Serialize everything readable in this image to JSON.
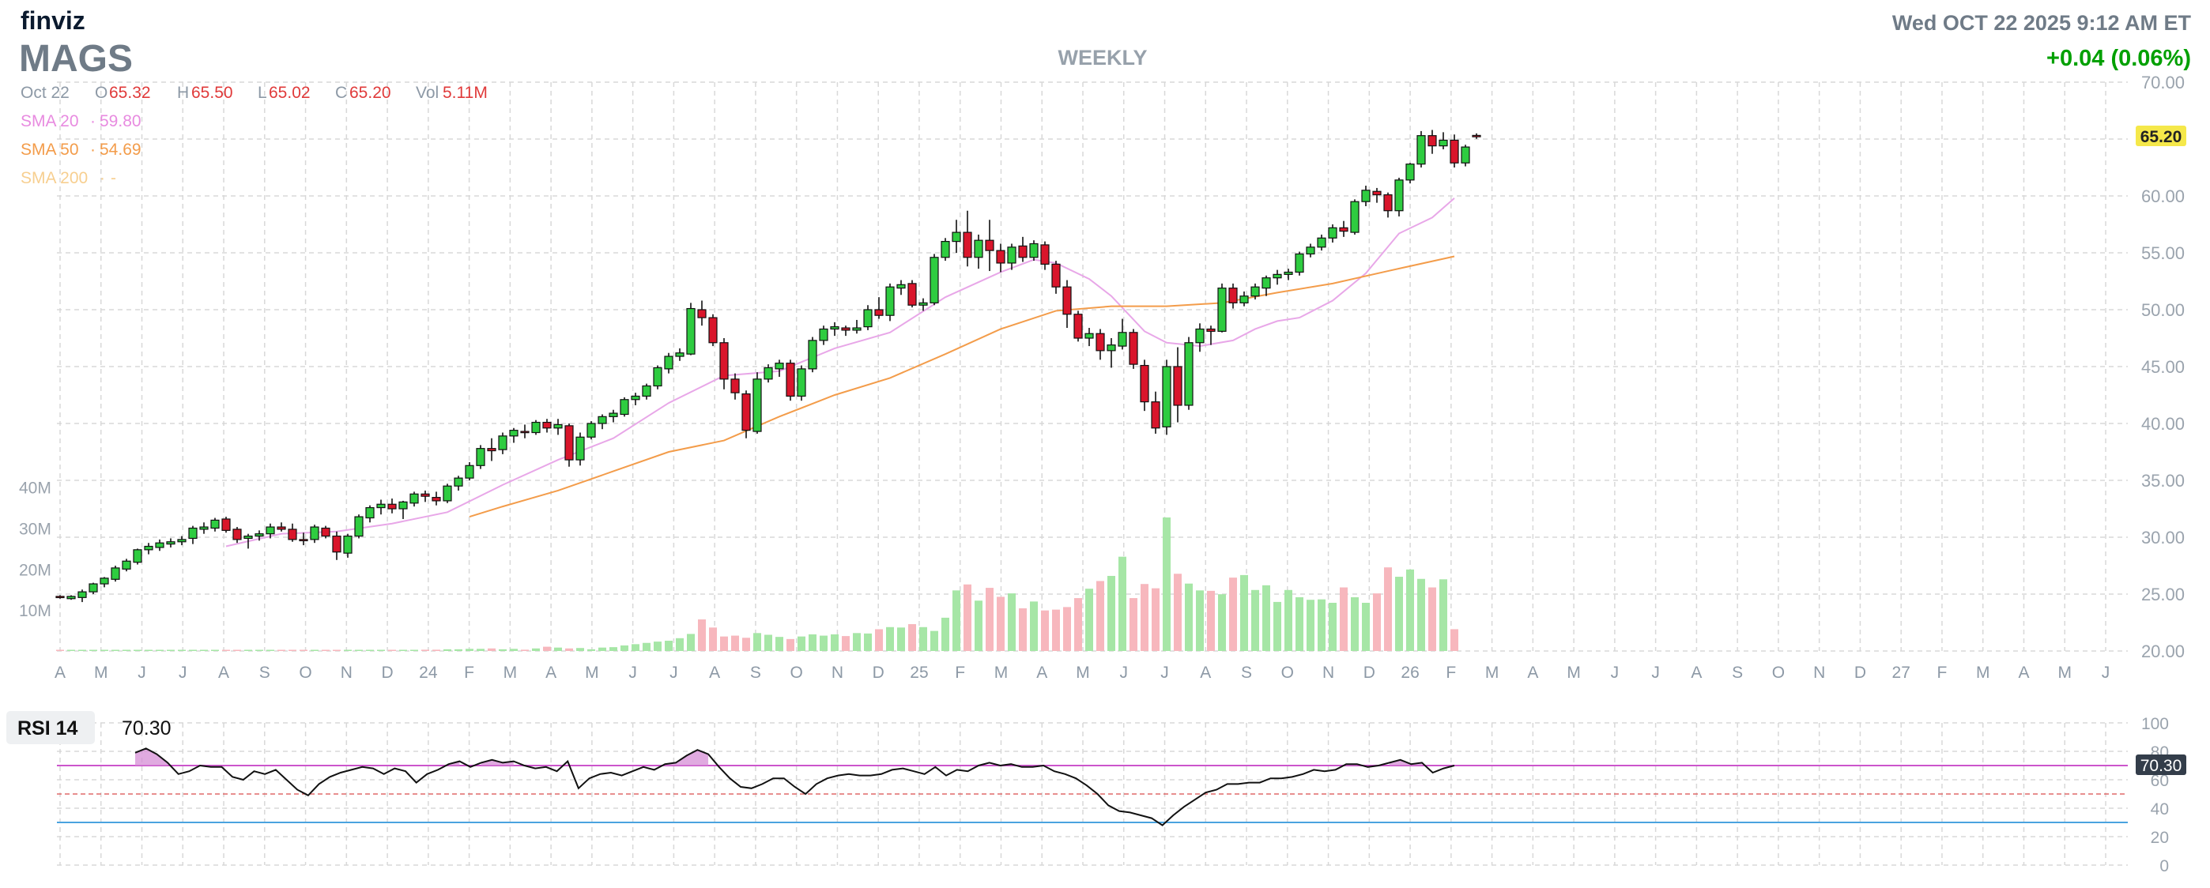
{
  "header": {
    "logo": "finviz",
    "ticker": "MAGS",
    "timeframe": "WEEKLY",
    "datetime": "Wed OCT 22 2025 9:12 AM ET",
    "change": "+0.04 (0.06%)"
  },
  "ohlc": {
    "date": "Oct 22",
    "o_label": "O",
    "open": "65.32",
    "h_label": "H",
    "high": "65.50",
    "l_label": "L",
    "low": "65.02",
    "c_label": "C",
    "close": "65.20",
    "vol_label": "Vol",
    "volume": "5.11M"
  },
  "sma": [
    {
      "label": "SMA 20",
      "value": "59.80",
      "color": "#e88be0"
    },
    {
      "label": "SMA 50",
      "value": "54.69",
      "color": "#f39c4a"
    },
    {
      "label": "SMA 200",
      "value": "-",
      "color": "#f7cf90"
    }
  ],
  "colors": {
    "up": "#2ecc40",
    "down": "#d9152b",
    "up_vol": "#a6e6a6",
    "down_vol": "#f7b7bd",
    "sma20": "#e3a2e3",
    "sma50": "#f39c4a",
    "grid": "#d8d8d8",
    "price_tag": "#f5e84a",
    "rsi_tag": "#333d4a",
    "rsi_line": "#111111",
    "rsi_70": "#cc55cc",
    "rsi_50": "#e06a6a",
    "rsi_30": "#4aa3df",
    "change": "#00a000"
  },
  "price_tag": "65.20",
  "volume_axis": [
    "40M",
    "30M",
    "20M",
    "10M"
  ],
  "rsi": {
    "label": "RSI 14",
    "value": "70.30",
    "ticks": [
      "100",
      "80",
      "60",
      "40",
      "20",
      "0"
    ],
    "values": [
      79,
      82,
      78,
      72,
      64,
      66,
      70,
      69,
      69,
      62,
      60,
      66,
      64,
      67,
      60,
      53,
      49,
      57,
      62,
      65,
      67,
      69,
      68,
      64,
      68,
      66,
      58,
      64,
      67,
      71,
      73,
      69,
      72,
      74,
      72,
      73,
      70,
      68,
      69,
      66,
      73,
      54,
      61,
      64,
      65,
      63,
      66,
      69,
      67,
      71,
      72,
      77,
      81,
      78,
      69,
      61,
      55,
      54,
      57,
      61,
      61,
      55,
      50,
      57,
      61,
      63,
      64,
      63,
      63,
      64,
      67,
      68,
      66,
      64,
      69,
      63,
      67,
      66,
      70,
      72,
      70,
      71,
      69,
      69,
      70,
      66,
      64,
      61,
      56,
      50,
      42,
      38,
      37,
      35,
      33,
      28,
      35,
      41,
      46,
      51,
      53,
      57,
      57,
      58,
      58,
      61,
      61,
      62,
      64,
      67,
      66,
      67,
      71,
      71,
      69,
      70,
      72,
      74,
      71,
      72,
      65,
      68,
      70
    ],
    "overbought": 70,
    "neutral": 50,
    "oversold": 30
  },
  "chart_data": {
    "type": "candlestick",
    "symbol": "MAGS",
    "interval": "weekly",
    "ylim": [
      20,
      70
    ],
    "y_ticks": [
      "70.00",
      "65.00",
      "60.00",
      "55.00",
      "50.00",
      "45.00",
      "40.00",
      "35.00",
      "30.00",
      "25.00",
      "20.00"
    ],
    "x_ticks": [
      "A",
      "M",
      "J",
      "J",
      "A",
      "S",
      "O",
      "N",
      "D",
      "24",
      "F",
      "M",
      "A",
      "M",
      "J",
      "J",
      "A",
      "S",
      "O",
      "N",
      "D",
      "25",
      "F",
      "M",
      "A",
      "M",
      "J",
      "J",
      "A",
      "S",
      "O",
      "N",
      "D",
      "26",
      "F",
      "M",
      "A",
      "M",
      "J",
      "J",
      "A",
      "S",
      "O",
      "N",
      "D",
      "27",
      "F",
      "M",
      "A",
      "M",
      "J"
    ],
    "last_candle_index": 126,
    "total_slots": 191,
    "ohlc": [
      [
        24.8,
        24.9,
        24.6,
        24.7
      ],
      [
        24.6,
        24.9,
        24.5,
        24.8
      ],
      [
        24.7,
        25.4,
        24.3,
        25.2
      ],
      [
        25.2,
        26.0,
        25.0,
        25.9
      ],
      [
        25.9,
        26.5,
        25.6,
        26.4
      ],
      [
        26.3,
        27.5,
        26.1,
        27.3
      ],
      [
        27.2,
        28.1,
        27.0,
        27.9
      ],
      [
        27.8,
        29.0,
        27.6,
        28.9
      ],
      [
        28.9,
        29.5,
        28.5,
        29.2
      ],
      [
        29.1,
        29.8,
        28.8,
        29.5
      ],
      [
        29.4,
        29.9,
        29.1,
        29.6
      ],
      [
        29.6,
        30.1,
        29.3,
        29.8
      ],
      [
        29.9,
        31.0,
        29.4,
        30.8
      ],
      [
        30.7,
        31.3,
        30.3,
        30.9
      ],
      [
        30.8,
        31.7,
        30.5,
        31.5
      ],
      [
        31.6,
        31.8,
        30.4,
        30.6
      ],
      [
        30.7,
        30.9,
        29.5,
        29.8
      ],
      [
        29.9,
        30.3,
        29.0,
        30.1
      ],
      [
        30.1,
        30.6,
        29.7,
        30.3
      ],
      [
        30.3,
        31.2,
        29.9,
        30.9
      ],
      [
        30.9,
        31.3,
        30.5,
        30.7
      ],
      [
        30.7,
        31.2,
        29.6,
        29.8
      ],
      [
        29.8,
        30.4,
        29.3,
        29.7
      ],
      [
        29.8,
        31.1,
        29.5,
        30.9
      ],
      [
        30.8,
        31.0,
        29.9,
        30.1
      ],
      [
        30.1,
        30.5,
        28.0,
        28.7
      ],
      [
        28.6,
        30.3,
        28.2,
        30.1
      ],
      [
        30.1,
        32.0,
        29.9,
        31.8
      ],
      [
        31.7,
        32.8,
        31.3,
        32.6
      ],
      [
        32.6,
        33.3,
        32.0,
        32.9
      ],
      [
        32.9,
        33.4,
        32.1,
        32.5
      ],
      [
        32.5,
        33.2,
        31.6,
        33.1
      ],
      [
        33.0,
        34.0,
        32.7,
        33.8
      ],
      [
        33.8,
        34.1,
        33.1,
        33.6
      ],
      [
        33.5,
        34.0,
        32.8,
        33.2
      ],
      [
        33.2,
        34.7,
        33.0,
        34.5
      ],
      [
        34.5,
        35.4,
        34.1,
        35.2
      ],
      [
        35.2,
        36.6,
        35.0,
        36.3
      ],
      [
        36.3,
        38.1,
        36.0,
        37.8
      ],
      [
        37.8,
        38.7,
        36.7,
        37.6
      ],
      [
        37.7,
        39.2,
        37.3,
        38.9
      ],
      [
        38.9,
        39.6,
        38.3,
        39.4
      ],
      [
        39.3,
        39.9,
        38.7,
        39.2
      ],
      [
        39.2,
        40.3,
        39.0,
        40.1
      ],
      [
        40.1,
        40.4,
        39.2,
        39.6
      ],
      [
        39.6,
        40.4,
        39.0,
        39.9
      ],
      [
        39.8,
        40.0,
        36.2,
        36.8
      ],
      [
        36.8,
        39.2,
        36.3,
        38.8
      ],
      [
        38.8,
        40.2,
        38.6,
        40.0
      ],
      [
        40.0,
        40.8,
        39.5,
        40.6
      ],
      [
        40.6,
        41.2,
        40.1,
        40.9
      ],
      [
        40.8,
        42.3,
        40.6,
        42.1
      ],
      [
        42.1,
        42.7,
        41.6,
        42.4
      ],
      [
        42.4,
        43.5,
        42.1,
        43.3
      ],
      [
        43.3,
        45.1,
        43.0,
        44.9
      ],
      [
        44.8,
        46.2,
        44.4,
        45.9
      ],
      [
        45.9,
        46.6,
        45.5,
        46.2
      ],
      [
        46.1,
        50.6,
        46.0,
        50.1
      ],
      [
        50.0,
        50.8,
        48.6,
        49.3
      ],
      [
        49.3,
        49.6,
        46.8,
        47.1
      ],
      [
        47.1,
        47.5,
        43.0,
        43.9
      ],
      [
        43.9,
        44.4,
        42.1,
        42.7
      ],
      [
        42.6,
        42.9,
        38.7,
        39.4
      ],
      [
        39.3,
        44.5,
        39.1,
        43.9
      ],
      [
        43.9,
        45.2,
        43.6,
        44.9
      ],
      [
        44.8,
        45.6,
        44.1,
        45.3
      ],
      [
        45.3,
        45.6,
        42.0,
        42.4
      ],
      [
        42.4,
        45.1,
        42.0,
        44.8
      ],
      [
        44.8,
        47.6,
        44.5,
        47.3
      ],
      [
        47.3,
        48.6,
        46.9,
        48.3
      ],
      [
        48.3,
        48.9,
        47.7,
        48.5
      ],
      [
        48.4,
        48.6,
        47.7,
        48.2
      ],
      [
        48.2,
        49.1,
        47.9,
        48.4
      ],
      [
        48.5,
        50.4,
        48.2,
        50.0
      ],
      [
        50.0,
        51.1,
        49.2,
        49.5
      ],
      [
        49.5,
        52.3,
        49.0,
        52.0
      ],
      [
        51.9,
        52.6,
        51.3,
        52.2
      ],
      [
        52.3,
        52.6,
        50.2,
        50.4
      ],
      [
        50.4,
        51.0,
        49.9,
        50.6
      ],
      [
        50.6,
        54.9,
        50.4,
        54.6
      ],
      [
        54.6,
        56.3,
        54.3,
        56.0
      ],
      [
        56.0,
        57.9,
        55.0,
        56.8
      ],
      [
        56.8,
        58.7,
        53.8,
        54.6
      ],
      [
        54.6,
        56.6,
        53.6,
        56.1
      ],
      [
        56.1,
        57.9,
        53.4,
        55.2
      ],
      [
        55.2,
        55.8,
        53.3,
        54.1
      ],
      [
        54.1,
        55.8,
        53.5,
        55.5
      ],
      [
        55.6,
        56.4,
        54.2,
        54.6
      ],
      [
        54.6,
        56.1,
        54.3,
        55.8
      ],
      [
        55.7,
        56.0,
        53.5,
        54.0
      ],
      [
        54.0,
        54.3,
        51.4,
        52.0
      ],
      [
        52.0,
        52.6,
        48.4,
        49.6
      ],
      [
        49.6,
        49.9,
        47.2,
        47.5
      ],
      [
        47.5,
        48.4,
        46.8,
        47.9
      ],
      [
        47.9,
        48.3,
        45.6,
        46.4
      ],
      [
        46.4,
        47.5,
        44.9,
        46.9
      ],
      [
        46.8,
        49.2,
        46.5,
        48.0
      ],
      [
        48.0,
        48.3,
        44.8,
        45.2
      ],
      [
        45.1,
        45.6,
        41.1,
        41.9
      ],
      [
        41.9,
        42.8,
        39.1,
        39.6
      ],
      [
        39.7,
        45.6,
        39.0,
        45.0
      ],
      [
        45.0,
        46.7,
        40.1,
        41.6
      ],
      [
        41.6,
        47.6,
        41.2,
        47.1
      ],
      [
        47.1,
        48.8,
        46.3,
        48.3
      ],
      [
        48.3,
        48.6,
        46.9,
        48.1
      ],
      [
        48.1,
        52.3,
        48.0,
        51.9
      ],
      [
        51.9,
        52.3,
        50.1,
        50.6
      ],
      [
        50.6,
        51.6,
        50.3,
        51.2
      ],
      [
        51.2,
        52.3,
        50.9,
        52.0
      ],
      [
        51.9,
        53.0,
        51.2,
        52.8
      ],
      [
        52.8,
        53.5,
        52.2,
        53.1
      ],
      [
        53.1,
        53.6,
        52.6,
        53.3
      ],
      [
        53.3,
        55.1,
        53.0,
        54.9
      ],
      [
        54.9,
        55.8,
        54.6,
        55.5
      ],
      [
        55.5,
        56.6,
        55.2,
        56.3
      ],
      [
        56.3,
        57.5,
        55.9,
        57.2
      ],
      [
        57.2,
        57.8,
        56.4,
        56.9
      ],
      [
        56.8,
        59.7,
        56.6,
        59.5
      ],
      [
        59.5,
        60.9,
        59.1,
        60.5
      ],
      [
        60.4,
        60.7,
        59.4,
        60.1
      ],
      [
        60.1,
        60.3,
        58.1,
        58.7
      ],
      [
        58.7,
        61.6,
        58.2,
        61.4
      ],
      [
        61.4,
        62.9,
        61.1,
        62.8
      ],
      [
        62.8,
        65.7,
        62.5,
        65.3
      ],
      [
        65.3,
        65.8,
        63.7,
        64.4
      ],
      [
        64.4,
        65.6,
        64.1,
        64.9
      ],
      [
        64.9,
        65.4,
        62.5,
        62.9
      ],
      [
        62.9,
        64.5,
        62.6,
        64.3
      ],
      [
        65.32,
        65.5,
        65.02,
        65.2
      ]
    ],
    "volumes_millions": [
      0.1,
      0.1,
      0.1,
      0.1,
      0.1,
      0.1,
      0.1,
      0.1,
      0.1,
      0.1,
      0.1,
      0.1,
      0.1,
      0.1,
      0.1,
      0.1,
      0.1,
      0.1,
      0.1,
      0.1,
      0.1,
      0.1,
      0.1,
      0.1,
      0.1,
      0.1,
      0.1,
      0.1,
      0.1,
      0.1,
      0.1,
      0.2,
      0.2,
      0.3,
      0.3,
      0.4,
      0.4,
      0.5,
      0.5,
      0.6,
      0.4,
      0.5,
      0.3,
      0.6,
      1.0,
      0.8,
      0.6,
      0.7,
      0.4,
      0.8,
      0.9,
      1.3,
      1.6,
      1.9,
      2.2,
      2.4,
      3.0,
      4.0,
      7.4,
      5.5,
      3.4,
      3.6,
      3.1,
      4.2,
      3.8,
      3.3,
      2.8,
      3.4,
      3.9,
      3.6,
      3.9,
      3.5,
      4.2,
      4.1,
      5.1,
      5.6,
      5.5,
      6.3,
      5.6,
      4.7,
      7.8,
      14.2,
      15.6,
      11.8,
      14.8,
      12.7,
      13.5,
      10.0,
      11.6,
      9.5,
      9.7,
      10.3,
      12.4,
      14.6,
      16.4,
      17.6,
      22.1,
      12.4,
      15.7,
      14.7,
      31.3,
      18.1,
      15.8,
      14.2,
      14.1,
      13.3,
      17.2,
      17.8,
      14.3,
      15.4,
      11.5,
      14.3,
      12.6,
      12.0,
      12.1,
      11.3,
      14.9,
      12.6,
      11.3,
      13.5,
      19.6,
      17.4,
      19.1,
      16.9,
      14.9,
      16.8,
      5.11
    ],
    "sma20": [
      [
        15,
        29.2
      ],
      [
        20,
        30.3
      ],
      [
        25,
        30.5
      ],
      [
        30,
        31.2
      ],
      [
        35,
        32.2
      ],
      [
        40,
        34.6
      ],
      [
        45,
        36.8
      ],
      [
        50,
        38.7
      ],
      [
        55,
        41.8
      ],
      [
        60,
        44.2
      ],
      [
        65,
        44.6
      ],
      [
        70,
        46.6
      ],
      [
        75,
        48.0
      ],
      [
        80,
        51.1
      ],
      [
        85,
        53.3
      ],
      [
        88,
        54.4
      ],
      [
        90,
        54.1
      ],
      [
        93,
        52.7
      ],
      [
        95,
        51.2
      ],
      [
        98,
        48.1
      ],
      [
        100,
        47.1
      ],
      [
        103,
        46.8
      ],
      [
        106,
        47.3
      ],
      [
        108,
        48.3
      ],
      [
        110,
        49.0
      ],
      [
        112,
        49.3
      ],
      [
        115,
        50.8
      ],
      [
        118,
        53.2
      ],
      [
        121,
        56.7
      ],
      [
        124,
        58.1
      ],
      [
        126,
        59.8
      ]
    ],
    "sma50": [
      [
        37,
        31.8
      ],
      [
        40,
        32.7
      ],
      [
        45,
        34.1
      ],
      [
        50,
        35.8
      ],
      [
        55,
        37.5
      ],
      [
        60,
        38.5
      ],
      [
        65,
        40.6
      ],
      [
        70,
        42.5
      ],
      [
        75,
        44.0
      ],
      [
        80,
        46.1
      ],
      [
        85,
        48.3
      ],
      [
        90,
        49.9
      ],
      [
        95,
        50.3
      ],
      [
        100,
        50.3
      ],
      [
        105,
        50.6
      ],
      [
        110,
        51.5
      ],
      [
        115,
        52.3
      ],
      [
        120,
        53.4
      ],
      [
        126,
        54.69
      ]
    ]
  }
}
